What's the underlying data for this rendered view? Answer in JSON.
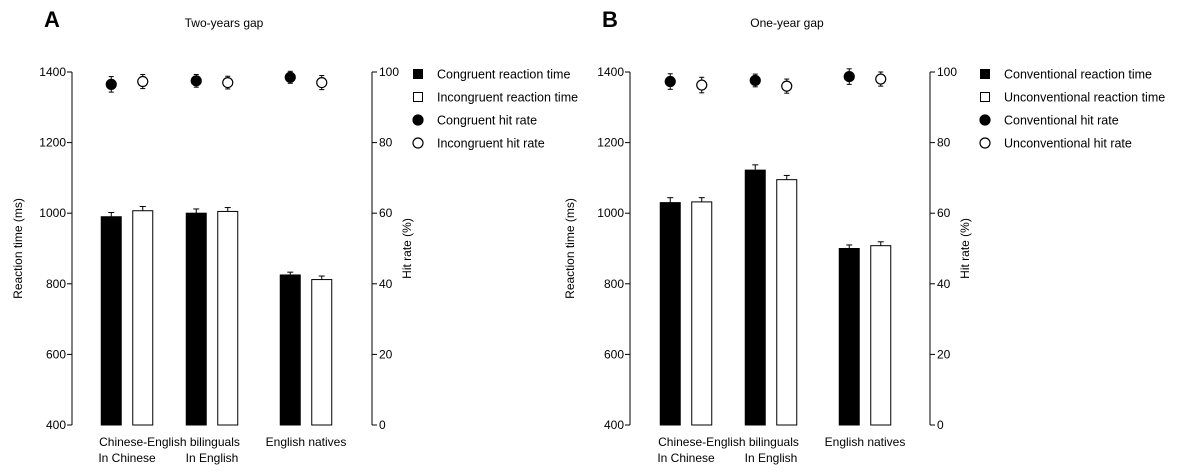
{
  "chart_data": [
    {
      "type": "bar",
      "panel_label": "A",
      "title": "Two-years gap",
      "ylabel": "Reaction time (ms)",
      "y2label": "Hit rate (%)",
      "ylim": [
        400,
        1400
      ],
      "y2lim": [
        0,
        100
      ],
      "yticks": [
        400,
        600,
        800,
        1000,
        1200,
        1400
      ],
      "y2ticks": [
        0,
        20,
        40,
        60,
        80,
        100
      ],
      "grid": false,
      "legend_position": "right",
      "group_header": "Chinese-English bilinguals",
      "categories": [
        "In Chinese",
        "In English",
        "English natives"
      ],
      "series": [
        {
          "name": "Congruent reaction time",
          "kind": "bar",
          "axis": "left",
          "fill": "#000000",
          "values": [
            990,
            1000,
            825
          ],
          "errors": [
            12,
            12,
            8
          ]
        },
        {
          "name": "Incongruent reaction time",
          "kind": "bar",
          "axis": "left",
          "fill": "#ffffff",
          "values": [
            1007,
            1005,
            812
          ],
          "errors": [
            12,
            11,
            10
          ]
        },
        {
          "name": "Congruent hit rate",
          "kind": "marker",
          "axis": "right",
          "fill": "#000000",
          "values": [
            96.5,
            97.5,
            98.5
          ],
          "errors": [
            2.2,
            1.8,
            1.7
          ]
        },
        {
          "name": "Incongruent hit rate",
          "kind": "marker",
          "axis": "right",
          "fill": "#ffffff",
          "values": [
            97.3,
            97.0,
            97.0
          ],
          "errors": [
            2.0,
            1.8,
            2.0
          ]
        }
      ]
    },
    {
      "type": "bar",
      "panel_label": "B",
      "title": "One-year gap",
      "ylabel": "Reaction time (ms)",
      "y2label": "Hit rate (%)",
      "ylim": [
        400,
        1400
      ],
      "y2lim": [
        0,
        100
      ],
      "yticks": [
        400,
        600,
        800,
        1000,
        1200,
        1400
      ],
      "y2ticks": [
        0,
        20,
        40,
        60,
        80,
        100
      ],
      "grid": false,
      "legend_position": "right",
      "group_header": "Chinese-English bilinguals",
      "categories": [
        "In Chinese",
        "In English",
        "English natives"
      ],
      "series": [
        {
          "name": "Conventional reaction time",
          "kind": "bar",
          "axis": "left",
          "fill": "#000000",
          "values": [
            1030,
            1122,
            900
          ],
          "errors": [
            14,
            15,
            10
          ]
        },
        {
          "name": "Unconventional reaction time",
          "kind": "bar",
          "axis": "left",
          "fill": "#ffffff",
          "values": [
            1032,
            1095,
            908
          ],
          "errors": [
            12,
            12,
            11
          ]
        },
        {
          "name": "Conventional hit rate",
          "kind": "marker",
          "axis": "right",
          "fill": "#000000",
          "values": [
            97.3,
            97.6,
            98.7
          ],
          "errors": [
            2.2,
            1.8,
            2.2
          ]
        },
        {
          "name": "Unconventional hit rate",
          "kind": "marker",
          "axis": "right",
          "fill": "#ffffff",
          "values": [
            96.3,
            96.0,
            98.0
          ],
          "errors": [
            2.2,
            2.0,
            2.0
          ]
        }
      ]
    }
  ]
}
